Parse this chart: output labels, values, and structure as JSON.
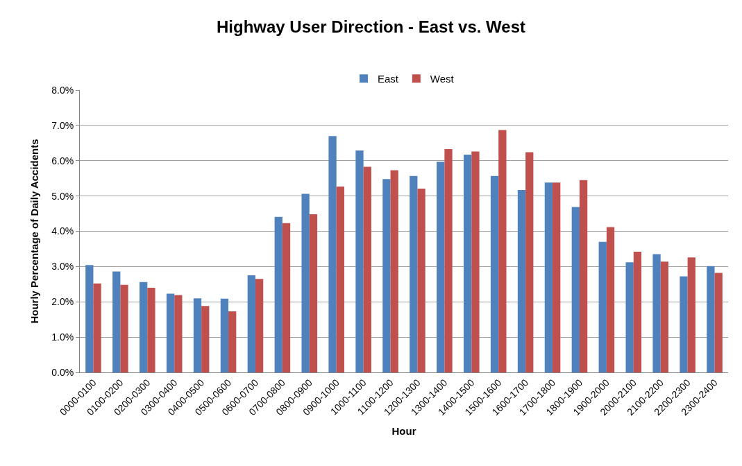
{
  "chart_data": {
    "type": "bar",
    "title": "Highway User Direction - East vs. West",
    "xlabel": "Hour",
    "ylabel": "Hourly Percentage of Daily Accidents",
    "categories": [
      "0000-0100",
      "0100-0200",
      "0200-0300",
      "0300-0400",
      "0400-0500",
      "0500-0600",
      "0600-0700",
      "0700-0800",
      "0800-0900",
      "0900-1000",
      "1000-1100",
      "1100-1200",
      "1200-1300",
      "1300-1400",
      "1400-1500",
      "1500-1600",
      "1600-1700",
      "1700-1800",
      "1800-1900",
      "1900-2000",
      "2000-2100",
      "2100-2200",
      "2200-2300",
      "2300-2400"
    ],
    "series": [
      {
        "name": "East",
        "color": "#4f81bd",
        "values": [
          3.04,
          2.86,
          2.56,
          2.23,
          2.1,
          2.09,
          2.75,
          4.41,
          5.06,
          6.7,
          6.29,
          5.48,
          5.57,
          5.97,
          6.17,
          5.57,
          5.17,
          5.38,
          4.69,
          3.7,
          3.12,
          3.35,
          2.72,
          3.01
        ]
      },
      {
        "name": "West",
        "color": "#c0504d",
        "values": [
          2.52,
          2.48,
          2.4,
          2.19,
          1.88,
          1.73,
          2.65,
          4.23,
          4.48,
          5.27,
          5.83,
          5.73,
          5.21,
          6.33,
          6.26,
          6.87,
          6.24,
          5.38,
          5.45,
          4.12,
          3.42,
          3.14,
          3.26,
          2.82
        ]
      }
    ],
    "ylim": [
      0,
      8
    ],
    "yticks": [
      {
        "value": 0,
        "label": "0.0%"
      },
      {
        "value": 1,
        "label": "1.0%"
      },
      {
        "value": 2,
        "label": "2.0%"
      },
      {
        "value": 3,
        "label": "3.0%"
      },
      {
        "value": 4,
        "label": "4.0%"
      },
      {
        "value": 5,
        "label": "5.0%"
      },
      {
        "value": 6,
        "label": "6.0%"
      },
      {
        "value": 7,
        "label": "7.0%"
      },
      {
        "value": 8,
        "label": "8.0%"
      }
    ],
    "grid": "y",
    "legend": "top"
  }
}
